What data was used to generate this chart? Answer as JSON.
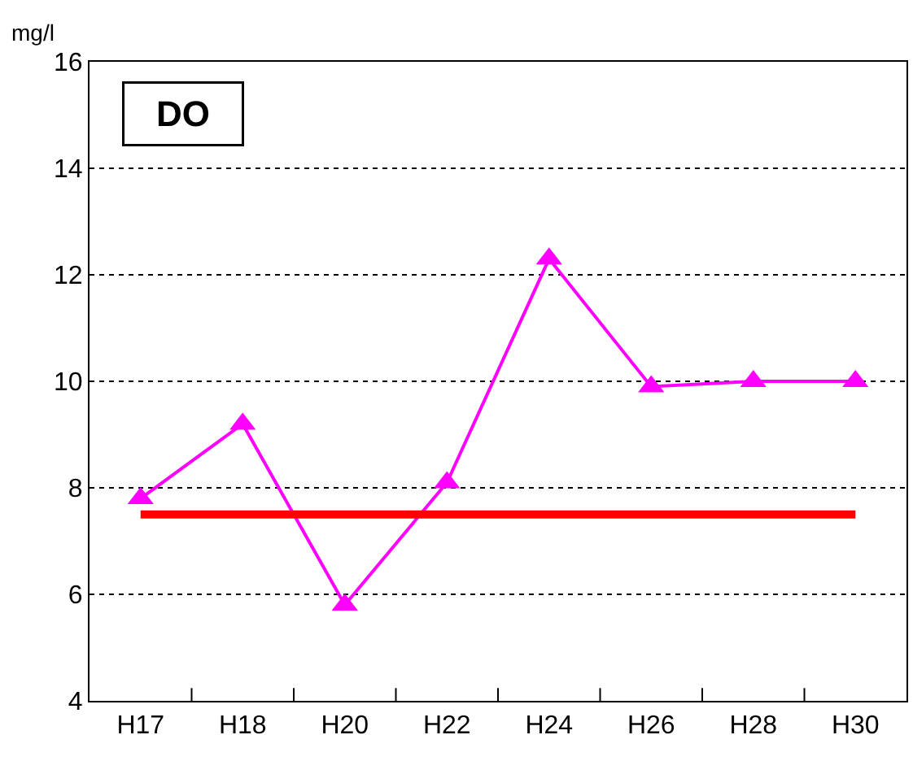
{
  "chart_data": {
    "type": "line",
    "ylabel": "mg/l",
    "annotations": [
      "DO"
    ],
    "categories": [
      "H17",
      "H18",
      "H20",
      "H22",
      "H24",
      "H26",
      "H28",
      "H30"
    ],
    "series": [
      {
        "color": "#ff00ff",
        "values": [
          7.8,
          9.2,
          5.8,
          8.1,
          12.3,
          9.9,
          10.0,
          10.0
        ],
        "marker": "triangle"
      },
      {
        "color": "#ff0000",
        "values": [
          7.5,
          7.5,
          7.5,
          7.5,
          7.5,
          7.5,
          7.5,
          7.5
        ],
        "marker": "none"
      }
    ],
    "ylim": [
      4,
      16
    ],
    "yticks": [
      4,
      6,
      8,
      10,
      12,
      14,
      16
    ],
    "grid": "y"
  }
}
